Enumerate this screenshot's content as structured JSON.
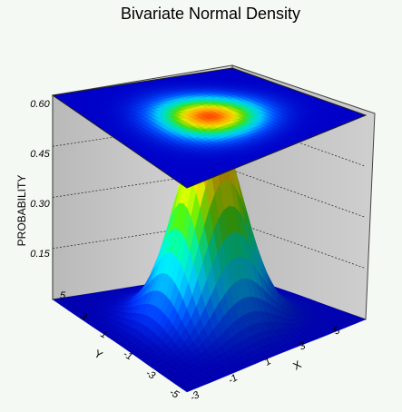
{
  "chart_data": {
    "type": "surface",
    "title": "Bivariate Normal Density",
    "zlabel": "PROBABILITY",
    "xlabel": "X",
    "ylabel": "Y",
    "z_ticks": [
      "0.15",
      "0.30",
      "0.45",
      "0.60"
    ],
    "x_ticks": [
      "-3",
      "-1",
      "1",
      "3",
      "5"
    ],
    "y_ticks": [
      "-5",
      "-3",
      "-1",
      "1",
      "3",
      "5"
    ],
    "xlim": [
      -5,
      5
    ],
    "ylim": [
      -5,
      5
    ],
    "zlim": [
      0,
      0.6
    ],
    "peak": {
      "x": 0,
      "y": 0,
      "z": 0.6
    },
    "sigma_x": 1.0,
    "sigma_y": 1.0,
    "top_contour_plane": "heatmap at z = 0.60",
    "grid": true,
    "colormap": [
      "#0000c8",
      "#0050ff",
      "#00c8ff",
      "#00e6a0",
      "#50dc00",
      "#e6e600",
      "#ffaa00",
      "#ff3c00"
    ]
  }
}
